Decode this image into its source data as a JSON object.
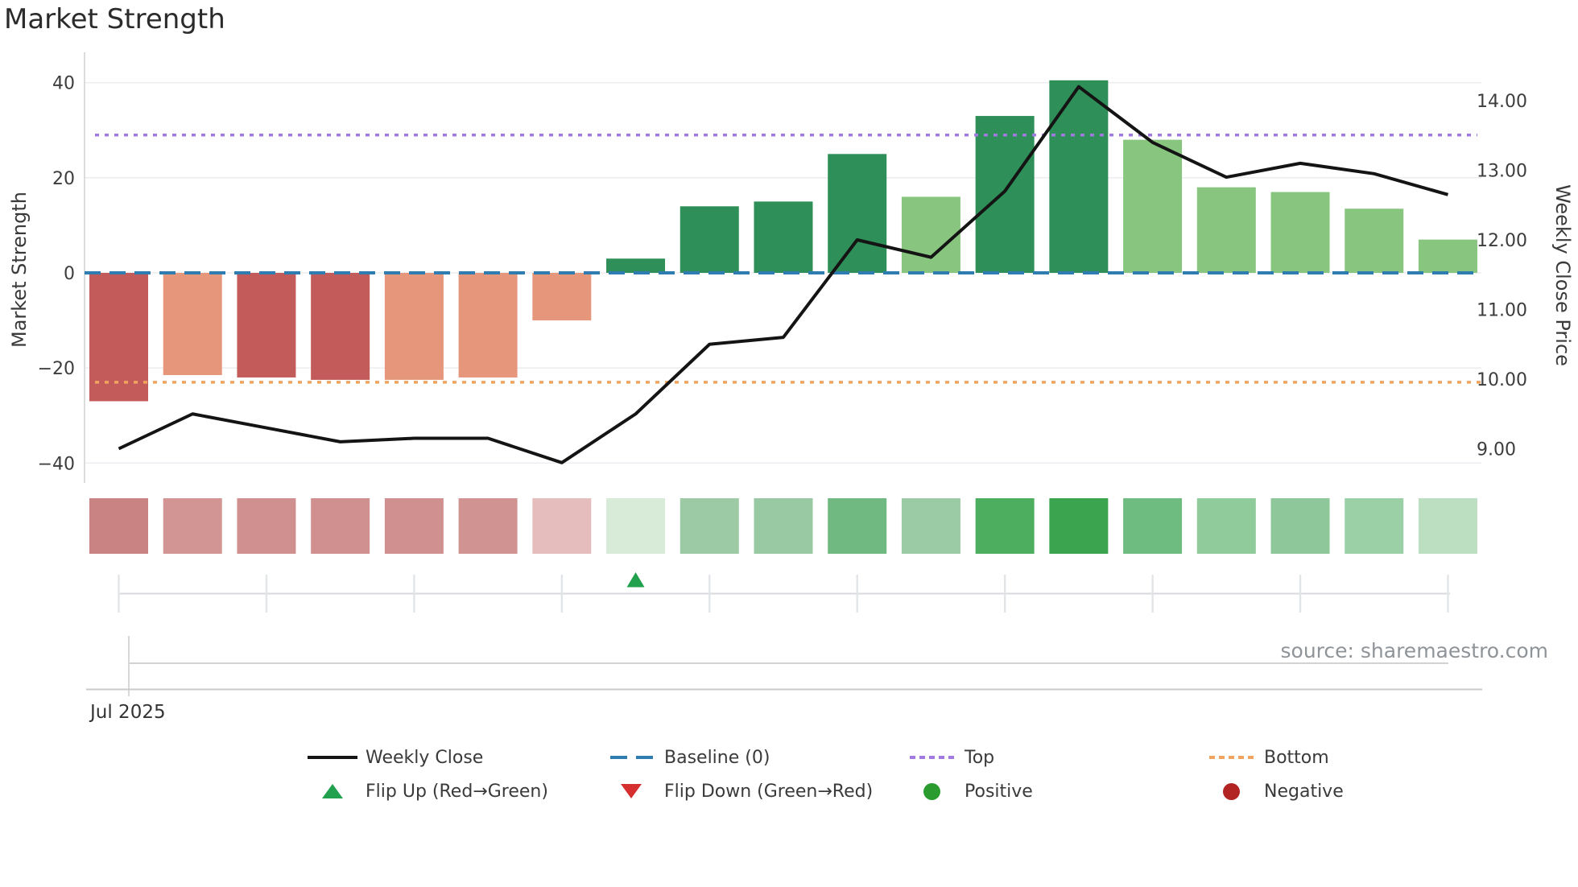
{
  "title": "Market Strength",
  "source_note": "source: sharemaestro.com",
  "legend": {
    "items": [
      {
        "label": "Weekly Close",
        "swatch": "line",
        "color": "#141414"
      },
      {
        "label": "Baseline (0)",
        "swatch": "dashes",
        "color": "#2e7cb0"
      },
      {
        "label": "Top",
        "swatch": "dots",
        "color": "#a07ae0"
      },
      {
        "label": "Bottom",
        "swatch": "dots",
        "color": "#f0a45f"
      },
      {
        "label": "Flip Up (Red→Green)",
        "swatch": "tri-up",
        "color": "#21a14d"
      },
      {
        "label": "Flip Down (Green→Red)",
        "swatch": "tri-down",
        "color": "#d62f2f"
      },
      {
        "label": "Positive",
        "swatch": "circle",
        "color": "#2a9b2e"
      },
      {
        "label": "Negative",
        "swatch": "circle",
        "color": "#b22424"
      }
    ]
  },
  "chart_data": {
    "type": "bar+line",
    "title": "Market Strength",
    "x_axis": {
      "first_tick_label": "Jul 2025",
      "tick_indices": [
        0,
        2,
        4,
        6,
        8,
        10,
        12,
        14,
        16,
        18
      ]
    },
    "left_axis": {
      "label": "Market Strength",
      "tick_values": [
        40,
        20,
        0,
        -20,
        -40
      ],
      "tick_labels": [
        "40",
        "20",
        "0",
        "−20",
        "−40"
      ],
      "range": [
        -44,
        46
      ]
    },
    "right_axis": {
      "label": "Weekly Close Price",
      "tick_values": [
        14,
        13,
        12,
        11,
        10,
        9
      ],
      "tick_labels": [
        "14.00",
        "13.00",
        "12.00",
        "11.00",
        "10.00",
        "9.00"
      ]
    },
    "reference_lines": {
      "baseline": {
        "label": "Baseline (0)",
        "value": 0,
        "color": "#2e7cb0",
        "style": "dashed"
      },
      "top": {
        "label": "Top",
        "value": 29,
        "color": "#a07ae0",
        "style": "dotted"
      },
      "bottom": {
        "label": "Bottom",
        "value": -23,
        "color": "#f0a45f",
        "style": "dotted"
      }
    },
    "bars": {
      "name": "Market Strength",
      "values": [
        -27,
        -21.5,
        -22,
        -22.5,
        -22.5,
        -22,
        -10,
        3,
        14,
        15,
        25,
        16,
        33,
        40.5,
        28,
        18,
        17,
        13.5,
        7
      ],
      "colors": [
        "#c45b5b",
        "#e6967a",
        "#c45b5b",
        "#c45b5b",
        "#e6967a",
        "#e6967a",
        "#e6967a",
        "#2e8f58",
        "#2e8f58",
        "#2e8f58",
        "#2e8f58",
        "#88c680",
        "#2e8f58",
        "#2e8f58",
        "#88c680",
        "#88c680",
        "#88c680",
        "#88c680",
        "#88c680"
      ]
    },
    "line": {
      "name": "Weekly Close",
      "axis": "right",
      "color": "#141414",
      "values": [
        9.0,
        9.5,
        9.3,
        9.1,
        9.15,
        9.15,
        8.8,
        9.5,
        10.5,
        10.6,
        12.0,
        11.75,
        12.7,
        14.2,
        13.4,
        12.9,
        13.1,
        12.95,
        12.65
      ]
    },
    "strip": {
      "name": "strength-heatmap",
      "colors": [
        "#c98383",
        "#d39494",
        "#d19090",
        "#d19090",
        "#d19090",
        "#d19292",
        "#e6bdbd",
        "#d8ebd9",
        "#9bcaa4",
        "#98c9a2",
        "#70ba81",
        "#9bcba5",
        "#4eae60",
        "#3aa44e",
        "#6fbc80",
        "#8fcb9b",
        "#8ec89a",
        "#9bcfa6",
        "#bcdec1"
      ]
    },
    "markers": {
      "flip_up": {
        "index": 7,
        "color": "#21a14d"
      }
    }
  }
}
